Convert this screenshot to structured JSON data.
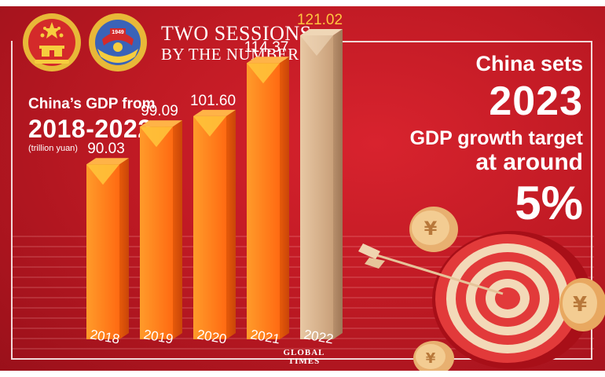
{
  "header": {
    "title": "TWO SESSIONS",
    "subtitle": "BY THE NUMBERS",
    "emblem_year": "1949"
  },
  "chart_heading": {
    "line1": "China’s GDP from",
    "line2": "2018-2022",
    "unit": "(trillion yuan)"
  },
  "target": {
    "line1": "China sets",
    "year": "2023",
    "line3": "GDP growth target",
    "line4": "at around",
    "value": "5%"
  },
  "logo": {
    "line1": "GLOBAL",
    "line2": "TIMES"
  },
  "colors": {
    "background": "#c01a24",
    "bar_orange": "#ff7a1a",
    "bar_highlight": "#d9b38e",
    "value_label_last": "#ffc640",
    "text": "#ffffff"
  },
  "chart_data": {
    "type": "bar",
    "title": "China’s GDP from 2018-2022",
    "ylabel": "(trillion yuan)",
    "categories": [
      "2018",
      "2019",
      "2020",
      "2021",
      "2022"
    ],
    "values": [
      90.03,
      99.09,
      101.6,
      114.37,
      121.02
    ],
    "value_labels": [
      "90.03",
      "99.09",
      "101.60",
      "114.37",
      "121.02"
    ],
    "highlight_index": 4
  }
}
